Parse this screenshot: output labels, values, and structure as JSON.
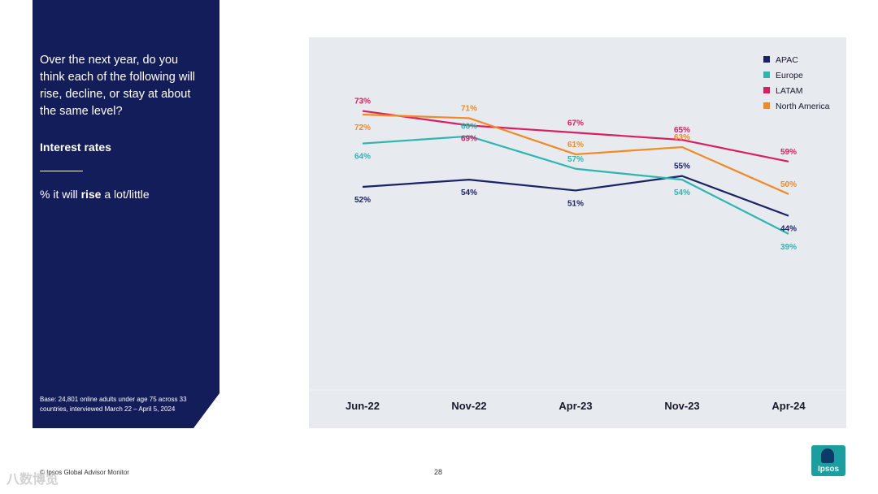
{
  "side_panel": {
    "question": "Over the next year, do you think each of the following will rise, decline, or stay at about the same level?",
    "subtitle": "Interest rates",
    "measure_prefix": "% it will ",
    "measure_bold": "rise",
    "measure_suffix": " a lot/little",
    "base_note": "Base: 24,801 online adults under age 75 across 33 countries, interviewed March 22 – April 5, 2024"
  },
  "footer": {
    "source": "© Ipsos Global Advisor Monitor",
    "page_number": "28",
    "logo_text": "Ipsos",
    "watermark": "八数博览"
  },
  "chart_data": {
    "type": "line",
    "x": [
      "Jun-22",
      "Nov-22",
      "Apr-23",
      "Nov-23",
      "Apr-24"
    ],
    "ylim": [
      0,
      100
    ],
    "grid": false,
    "legend_position": "top-right",
    "series": [
      {
        "name": "APAC",
        "color": "#1b2266",
        "values": [
          52,
          54,
          51,
          55,
          44
        ]
      },
      {
        "name": "Europe",
        "color": "#2fb5b0",
        "values": [
          64,
          66,
          57,
          54,
          39
        ]
      },
      {
        "name": "LATAM",
        "color": "#d81f63",
        "values": [
          73,
          69,
          67,
          65,
          59
        ]
      },
      {
        "name": "North America",
        "color": "#f08a24",
        "values": [
          72,
          71,
          61,
          63,
          50
        ]
      }
    ],
    "data_labels": [
      {
        "series": "APAC",
        "labels": [
          "52%",
          "54%",
          "51%",
          "55%",
          "44%"
        ],
        "placement": [
          "below",
          "below",
          "below",
          "above",
          "below"
        ]
      },
      {
        "series": "Europe",
        "labels": [
          "64%",
          "66%",
          "57%",
          "54%",
          "39%"
        ],
        "placement": [
          "below",
          "above",
          "above",
          "below",
          "below"
        ]
      },
      {
        "series": "LATAM",
        "labels": [
          "73%",
          "69%",
          "67%",
          "65%",
          "59%"
        ],
        "placement": [
          "above",
          "below",
          "above",
          "above",
          "above"
        ]
      },
      {
        "series": "North America",
        "labels": [
          "72%",
          "71%",
          "61%",
          "63%",
          "50%"
        ],
        "placement": [
          "below",
          "above",
          "above",
          "above",
          "above"
        ]
      }
    ]
  }
}
